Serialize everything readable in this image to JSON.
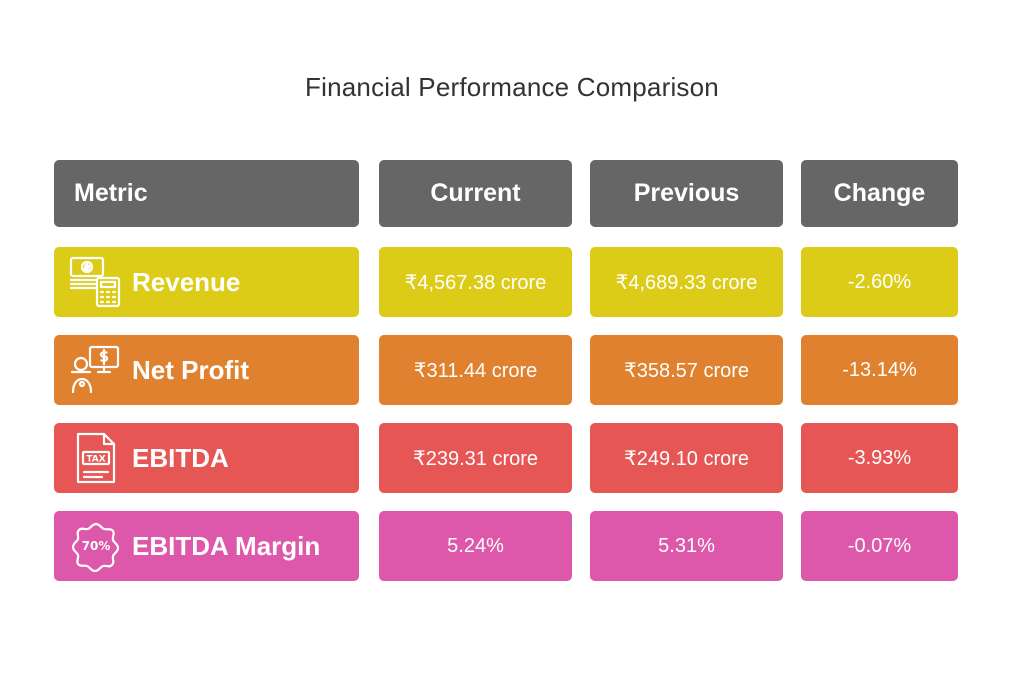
{
  "title": "Financial Performance Comparison",
  "colors": {
    "header": "#666666",
    "revenue": "#DCCB17",
    "net_profit": "#E0812F",
    "ebitda": "#E55654",
    "ebitda_margin": "#DD57AA"
  },
  "headers": {
    "metric": "Metric",
    "current": "Current",
    "previous": "Previous",
    "change": "Change"
  },
  "rows": [
    {
      "metric": "Revenue",
      "icon": "money-calculator-icon",
      "current": "₹4,567.38 crore",
      "previous": "₹4,689.33 crore",
      "change": "-2.60%",
      "color": "#DCCB17"
    },
    {
      "metric": "Net Profit",
      "icon": "presenter-money-icon",
      "current": "₹311.44 crore",
      "previous": "₹358.57 crore",
      "change": "-13.14%",
      "color": "#E0812F"
    },
    {
      "metric": "EBITDA",
      "icon": "tax-document-icon",
      "current": "₹239.31 crore",
      "previous": "₹249.10 crore",
      "change": "-3.93%",
      "color": "#E55654"
    },
    {
      "metric": "EBITDA Margin",
      "icon": "percentage-badge-icon",
      "current": "5.24%",
      "previous": "5.31%",
      "change": "-0.07%",
      "color": "#DD57AA"
    }
  ],
  "icon_labels": {
    "tax": "TAX",
    "percent": "70%"
  }
}
